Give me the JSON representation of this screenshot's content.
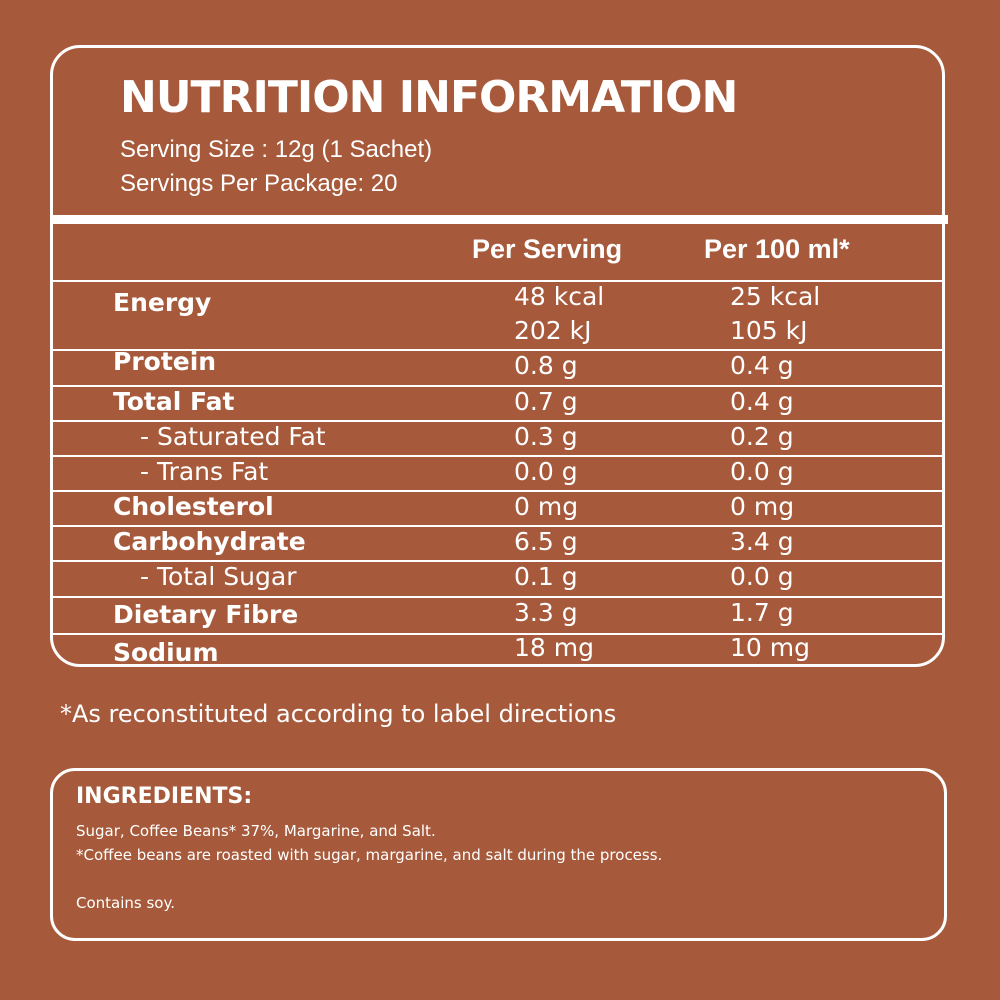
{
  "header": {
    "title": "NUTRITION INFORMATION",
    "serving_size": "Serving Size : 12g (1 Sachet)",
    "servings_per_package": "Servings Per Package: 20"
  },
  "columns": {
    "per_serving": "Per Serving",
    "per_100ml": "Per 100 ml*"
  },
  "rows": [
    {
      "label": "Energy",
      "per_serving": "48 kcal",
      "per_100ml": "25 kcal",
      "per_serving_2": "202 kJ",
      "per_100ml_2": "105 kJ"
    },
    {
      "label": "Protein",
      "per_serving": "0.8 g",
      "per_100ml": "0.4 g"
    },
    {
      "label": "Total Fat",
      "per_serving": "0.7 g",
      "per_100ml": "0.4 g"
    },
    {
      "label": "- Saturated Fat",
      "per_serving": "0.3 g",
      "per_100ml": "0.2 g"
    },
    {
      "label": "- Trans Fat",
      "per_serving": "0.0 g",
      "per_100ml": "0.0 g"
    },
    {
      "label": "Cholesterol",
      "per_serving": "0 mg",
      "per_100ml": "0 mg"
    },
    {
      "label": "Carbohydrate",
      "per_serving": "6.5 g",
      "per_100ml": "3.4 g"
    },
    {
      "label": "- Total Sugar",
      "per_serving": "0.1 g",
      "per_100ml": "0.0 g"
    },
    {
      "label": "Dietary Fibre",
      "per_serving": "3.3 g",
      "per_100ml": "1.7 g"
    },
    {
      "label": "Sodium",
      "per_serving": "18 mg",
      "per_100ml": "10 mg"
    }
  ],
  "footnote": "*As reconstituted according to label directions",
  "ingredients": {
    "title": "INGREDIENTS:",
    "line1": "Sugar, Coffee Beans* 37%, Margarine, and Salt.",
    "line2": "*Coffee beans are roasted with sugar, margarine, and salt during the process.",
    "allergen": "Contains soy."
  },
  "colors": {
    "background": "#a65a3b",
    "foreground": "#ffffff"
  }
}
